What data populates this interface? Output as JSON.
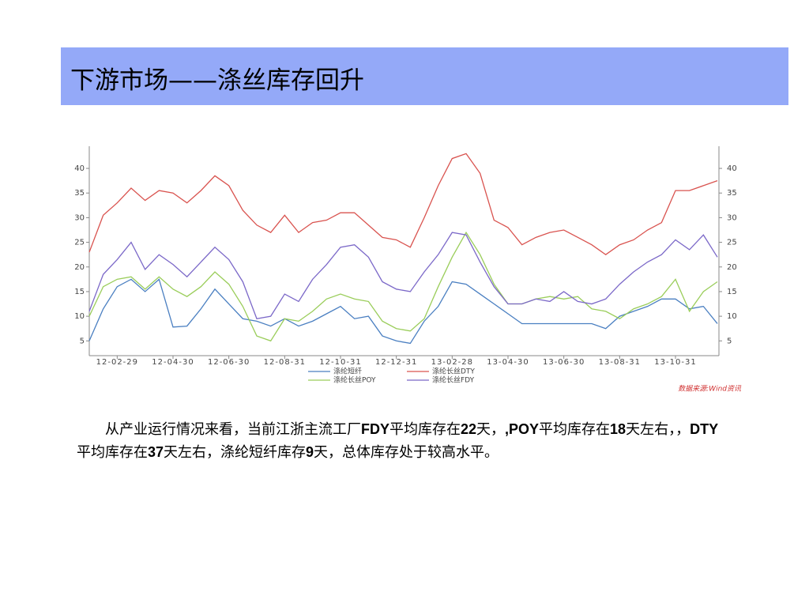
{
  "slide_title": "下游市场——涤丝库存回升",
  "chart_data": {
    "type": "line",
    "categories": [
      null,
      null,
      "12-02-29",
      null,
      null,
      null,
      "12-04-30",
      null,
      null,
      null,
      "12-06-30",
      null,
      null,
      null,
      "12-08-31",
      null,
      null,
      null,
      "12-10-31",
      null,
      null,
      null,
      "12-12-31",
      null,
      null,
      null,
      "13-02-28",
      null,
      null,
      null,
      "13-04-30",
      null,
      null,
      null,
      "13-06-30",
      null,
      null,
      null,
      "13-08-31",
      null,
      null,
      null,
      "13-10-31",
      null,
      null,
      null
    ],
    "series": [
      {
        "name": "涤纶短纤",
        "color": "#4a7fc1",
        "values": [
          5,
          11.5,
          16,
          17.5,
          15,
          17.5,
          7.8,
          8,
          11.5,
          15.5,
          12.5,
          9.5,
          9,
          8,
          9.5,
          8,
          9,
          10.5,
          12,
          9.5,
          10,
          6,
          5,
          4.5,
          9,
          12,
          17,
          16.5,
          14.5,
          12.5,
          10.5,
          8.5,
          8.5,
          8.5,
          8.5,
          8.5,
          8.5,
          7.5,
          10,
          11,
          12,
          13.5,
          13.5,
          11.5,
          12,
          8.5
        ]
      },
      {
        "name": "涤纶长丝DTY",
        "color": "#d9534f",
        "values": [
          23,
          30.5,
          33,
          36,
          33.5,
          35.5,
          35,
          33,
          35.5,
          38.5,
          36.5,
          31.5,
          28.5,
          27,
          30.5,
          27,
          29,
          29.5,
          31,
          31,
          28.5,
          26,
          25.5,
          24,
          30,
          36.5,
          42,
          43,
          39,
          29.5,
          28,
          24.5,
          26,
          27,
          27.5,
          26,
          24.5,
          22.5,
          24.5,
          25.5,
          27.5,
          29,
          35.5,
          35.5,
          36.5,
          37.5
        ]
      },
      {
        "name": "涤纶长丝POY",
        "color": "#9acd5a",
        "values": [
          10,
          16,
          17.5,
          18,
          15.5,
          18,
          15.5,
          14,
          16,
          19,
          16.5,
          12,
          6,
          5,
          9.5,
          9,
          11,
          13.5,
          14.5,
          13.5,
          13,
          9,
          7.5,
          7,
          9.5,
          16,
          22,
          27,
          22.5,
          16.5,
          12.5,
          12.5,
          13.5,
          14,
          13.5,
          14,
          11.5,
          11,
          9.5,
          11.5,
          12.5,
          14,
          17.5,
          11,
          15,
          17
        ]
      },
      {
        "name": "涤纶长丝FDY",
        "color": "#7b68c8",
        "values": [
          11,
          18.5,
          21.5,
          25,
          19.5,
          22.5,
          20.5,
          18,
          21,
          24,
          21.5,
          17,
          9.5,
          10,
          14.5,
          13,
          17.5,
          20.5,
          24,
          24.5,
          22,
          17,
          15.5,
          15,
          19,
          22.5,
          27,
          26.5,
          21,
          16,
          12.5,
          12.5,
          13.5,
          13,
          15,
          13,
          12.5,
          13.5,
          16.5,
          19,
          21,
          22.5,
          25.5,
          23.5,
          26.5,
          22
        ]
      }
    ],
    "ylim": [
      2,
      44.5
    ],
    "yticks": [
      5,
      10,
      15,
      20,
      25,
      30,
      35,
      40
    ],
    "y2lim": [
      2,
      44.5
    ],
    "y2ticks": [
      5,
      10,
      15,
      20,
      25,
      30,
      35,
      40
    ],
    "source": "数据来源:Wind资讯"
  },
  "paragraph": [
    {
      "text": "从产业运行情况来看，当前江浙主流工厂",
      "bold": false
    },
    {
      "text": "FDY",
      "bold": true
    },
    {
      "text": "平均库存在",
      "bold": false
    },
    {
      "text": "22",
      "bold": true
    },
    {
      "text": "天，",
      "bold": false
    },
    {
      "text": ",POY",
      "bold": true
    },
    {
      "text": "平均库存在",
      "bold": false
    },
    {
      "text": "18",
      "bold": true
    },
    {
      "text": "天左右，，",
      "bold": false
    },
    {
      "text": "DTY",
      "bold": true
    },
    {
      "text": "平均库存在",
      "bold": false
    },
    {
      "text": "37",
      "bold": true
    },
    {
      "text": "天左右，涤纶短纤库存",
      "bold": false
    },
    {
      "text": "9",
      "bold": true
    },
    {
      "text": "天，总体库存处于较高水平。",
      "bold": false
    }
  ]
}
